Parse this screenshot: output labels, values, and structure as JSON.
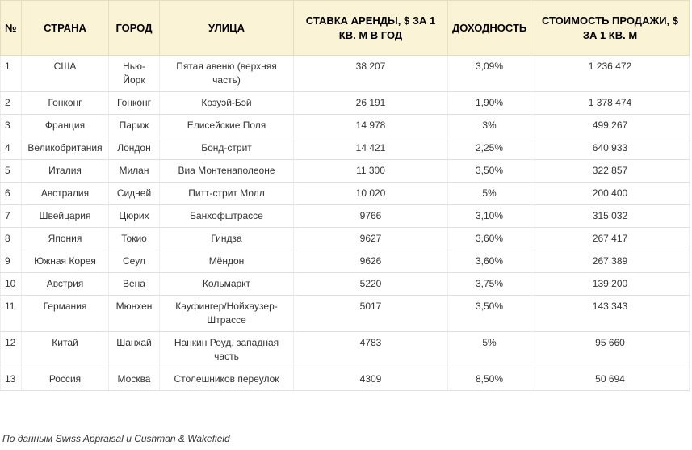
{
  "headers": {
    "num": "№",
    "country": "СТРАНА",
    "city": "ГОРОД",
    "street": "УЛИЦА",
    "rent": "СТАВКА АРЕНДЫ, $ ЗА 1 КВ. М В ГОД",
    "yield": "ДОХОДНОСТЬ",
    "price": "СТОИМОСТЬ ПРОДАЖИ, $ ЗА 1 КВ. М"
  },
  "rows": [
    {
      "num": "1",
      "country": "США",
      "city": "Нью-Йорк",
      "street": "Пятая авеню (верхняя часть)",
      "rent": "38 207",
      "yield": "3,09%",
      "price": "1 236 472"
    },
    {
      "num": "2",
      "country": "Гонконг",
      "city": "Гонконг",
      "street": "Козуэй-Бэй",
      "rent": "26 191",
      "yield": "1,90%",
      "price": "1 378 474"
    },
    {
      "num": "3",
      "country": "Франция",
      "city": "Париж",
      "street": "Елисейские Поля",
      "rent": "14 978",
      "yield": "3%",
      "price": "499 267"
    },
    {
      "num": "4",
      "country": "Великобритания",
      "city": "Лондон",
      "street": "Бонд-стрит",
      "rent": "14 421",
      "yield": "2,25%",
      "price": "640 933"
    },
    {
      "num": "5",
      "country": "Италия",
      "city": "Милан",
      "street": "Виа Монтенаполеоне",
      "rent": "11 300",
      "yield": "3,50%",
      "price": "322 857"
    },
    {
      "num": "6",
      "country": "Австралия",
      "city": "Сидней",
      "street": "Питт-стрит Молл",
      "rent": "10 020",
      "yield": "5%",
      "price": "200 400"
    },
    {
      "num": "7",
      "country": "Швейцария",
      "city": "Цюрих",
      "street": "Банхофштрассе",
      "rent": "9766",
      "yield": "3,10%",
      "price": "315 032"
    },
    {
      "num": "8",
      "country": "Япония",
      "city": "Токио",
      "street": "Гиндза",
      "rent": "9627",
      "yield": "3,60%",
      "price": "267 417"
    },
    {
      "num": "9",
      "country": "Южная Корея",
      "city": "Сеул",
      "street": "Мёндон",
      "rent": "9626",
      "yield": "3,60%",
      "price": "267 389"
    },
    {
      "num": "10",
      "country": "Австрия",
      "city": "Вена",
      "street": "Кольмаркт",
      "rent": "5220",
      "yield": "3,75%",
      "price": "139 200"
    },
    {
      "num": "11",
      "country": "Германия",
      "city": "Мюнхен",
      "street": "Кауфингер/Нойхаузер-Штрассе",
      "rent": "5017",
      "yield": "3,50%",
      "price": "143 343"
    },
    {
      "num": "12",
      "country": "Китай",
      "city": "Шанхай",
      "street": "Нанкин Роуд, западная часть",
      "rent": "4783",
      "yield": "5%",
      "price": "95 660"
    },
    {
      "num": "13",
      "country": "Россия",
      "city": "Москва",
      "street": "Столешников переулок",
      "rent": "4309",
      "yield": "8,50%",
      "price": "50 694"
    }
  ],
  "source": "По данным Swiss Appraisal и Cushman & Wakefield"
}
